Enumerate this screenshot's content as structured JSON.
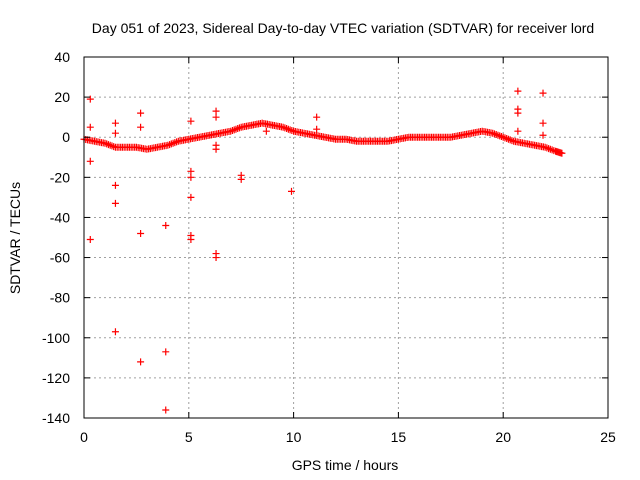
{
  "chart_data": {
    "type": "scatter",
    "title": "Day 051 of 2023, Sidereal Day-to-day VTEC variation (SDTVAR) for receiver lord",
    "xlabel": "GPS time / hours",
    "ylabel": "SDTVAR / TECUs",
    "xlim": [
      0,
      25
    ],
    "ylim": [
      -140,
      40
    ],
    "xticks": [
      0,
      5,
      10,
      15,
      20,
      25
    ],
    "yticks": [
      -140,
      -120,
      -100,
      -80,
      -60,
      -40,
      -20,
      0,
      20,
      40
    ],
    "grid": true,
    "marker": "+",
    "color": "#ff0000",
    "series": [
      {
        "name": "SDTVAR",
        "curve": [
          [
            0.0,
            -1
          ],
          [
            0.5,
            -2
          ],
          [
            1.0,
            -3
          ],
          [
            1.5,
            -5
          ],
          [
            2.0,
            -5
          ],
          [
            2.5,
            -5
          ],
          [
            3.0,
            -6
          ],
          [
            3.5,
            -5
          ],
          [
            4.0,
            -4
          ],
          [
            4.5,
            -2
          ],
          [
            5.0,
            -1
          ],
          [
            5.5,
            0
          ],
          [
            6.0,
            1
          ],
          [
            6.5,
            2
          ],
          [
            7.0,
            3
          ],
          [
            7.5,
            5
          ],
          [
            8.0,
            6
          ],
          [
            8.5,
            7
          ],
          [
            9.0,
            6
          ],
          [
            9.5,
            5
          ],
          [
            10.0,
            3
          ],
          [
            10.5,
            2
          ],
          [
            11.0,
            1
          ],
          [
            11.5,
            0
          ],
          [
            12.0,
            -1
          ],
          [
            12.5,
            -1
          ],
          [
            13.0,
            -2
          ],
          [
            13.5,
            -2
          ],
          [
            14.0,
            -2
          ],
          [
            14.5,
            -2
          ],
          [
            15.0,
            -1
          ],
          [
            15.5,
            0
          ],
          [
            16.0,
            0
          ],
          [
            16.5,
            0
          ],
          [
            17.0,
            0
          ],
          [
            17.5,
            0
          ],
          [
            18.0,
            1
          ],
          [
            18.5,
            2
          ],
          [
            19.0,
            3
          ],
          [
            19.5,
            2
          ],
          [
            20.0,
            0
          ],
          [
            20.5,
            -2
          ],
          [
            21.0,
            -3
          ],
          [
            21.5,
            -4
          ],
          [
            22.0,
            -5
          ],
          [
            22.5,
            -7
          ],
          [
            22.8,
            -8
          ]
        ],
        "outliers": [
          [
            0.3,
            19
          ],
          [
            0.3,
            5
          ],
          [
            0.3,
            -12
          ],
          [
            0.3,
            -51
          ],
          [
            1.5,
            7
          ],
          [
            1.5,
            2
          ],
          [
            1.5,
            -24
          ],
          [
            1.5,
            -33
          ],
          [
            1.5,
            -97
          ],
          [
            2.7,
            12
          ],
          [
            2.7,
            5
          ],
          [
            2.7,
            -48
          ],
          [
            2.7,
            -112
          ],
          [
            3.9,
            -44
          ],
          [
            3.9,
            -107
          ],
          [
            3.9,
            -136
          ],
          [
            5.1,
            8
          ],
          [
            5.1,
            -17
          ],
          [
            5.1,
            -20
          ],
          [
            5.1,
            -30
          ],
          [
            5.1,
            -49
          ],
          [
            5.1,
            -51
          ],
          [
            6.3,
            13
          ],
          [
            6.3,
            10
          ],
          [
            6.3,
            -4
          ],
          [
            6.3,
            -6
          ],
          [
            6.3,
            -58
          ],
          [
            6.3,
            -60
          ],
          [
            7.5,
            -19
          ],
          [
            7.5,
            -21
          ],
          [
            8.7,
            3
          ],
          [
            9.9,
            -27
          ],
          [
            11.1,
            10
          ],
          [
            11.1,
            4
          ],
          [
            20.7,
            23
          ],
          [
            20.7,
            14
          ],
          [
            20.7,
            12
          ],
          [
            20.7,
            3
          ],
          [
            21.9,
            22
          ],
          [
            21.9,
            7
          ],
          [
            21.9,
            1
          ]
        ]
      }
    ]
  }
}
